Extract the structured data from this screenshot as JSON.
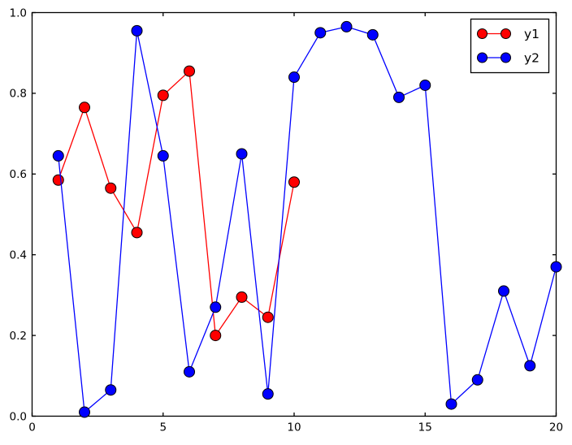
{
  "chart_data": {
    "type": "line",
    "title": "",
    "xlabel": "",
    "ylabel": "",
    "xlim": [
      0,
      20
    ],
    "ylim": [
      0.0,
      1.0
    ],
    "grid": false,
    "xticks": {
      "values": [
        0,
        5,
        10,
        15,
        20
      ],
      "labels": [
        "0",
        "5",
        "10",
        "15",
        "20"
      ]
    },
    "yticks": {
      "values": [
        0.0,
        0.2,
        0.4,
        0.6,
        0.8,
        1.0
      ],
      "labels": [
        "0.0",
        "0.2",
        "0.4",
        "0.6",
        "0.8",
        "1.0"
      ]
    },
    "legend": {
      "position": "upper right",
      "entries": [
        "y1",
        "y2"
      ]
    },
    "series": [
      {
        "name": "y1",
        "color": "#ff0000",
        "marker": "circle",
        "x": [
          1,
          2,
          3,
          4,
          5,
          6,
          7,
          8,
          9,
          10
        ],
        "y": [
          0.585,
          0.765,
          0.565,
          0.455,
          0.795,
          0.855,
          0.2,
          0.295,
          0.245,
          0.58
        ]
      },
      {
        "name": "y2",
        "color": "#0000ff",
        "marker": "circle",
        "x": [
          1,
          2,
          3,
          4,
          5,
          6,
          7,
          8,
          9,
          10,
          11,
          12,
          13,
          14,
          15,
          16,
          17,
          18,
          19,
          20
        ],
        "y": [
          0.645,
          0.01,
          0.065,
          0.955,
          0.645,
          0.11,
          0.27,
          0.65,
          0.055,
          0.84,
          0.95,
          0.965,
          0.945,
          0.79,
          0.82,
          0.03,
          0.09,
          0.31,
          0.125,
          0.37
        ]
      }
    ]
  },
  "styles": {
    "background": "#ffffff",
    "axis_color": "#000000",
    "marker_edge_color": "#000000",
    "legend_border_color": "#000000",
    "legend_background": "#ffffff"
  }
}
